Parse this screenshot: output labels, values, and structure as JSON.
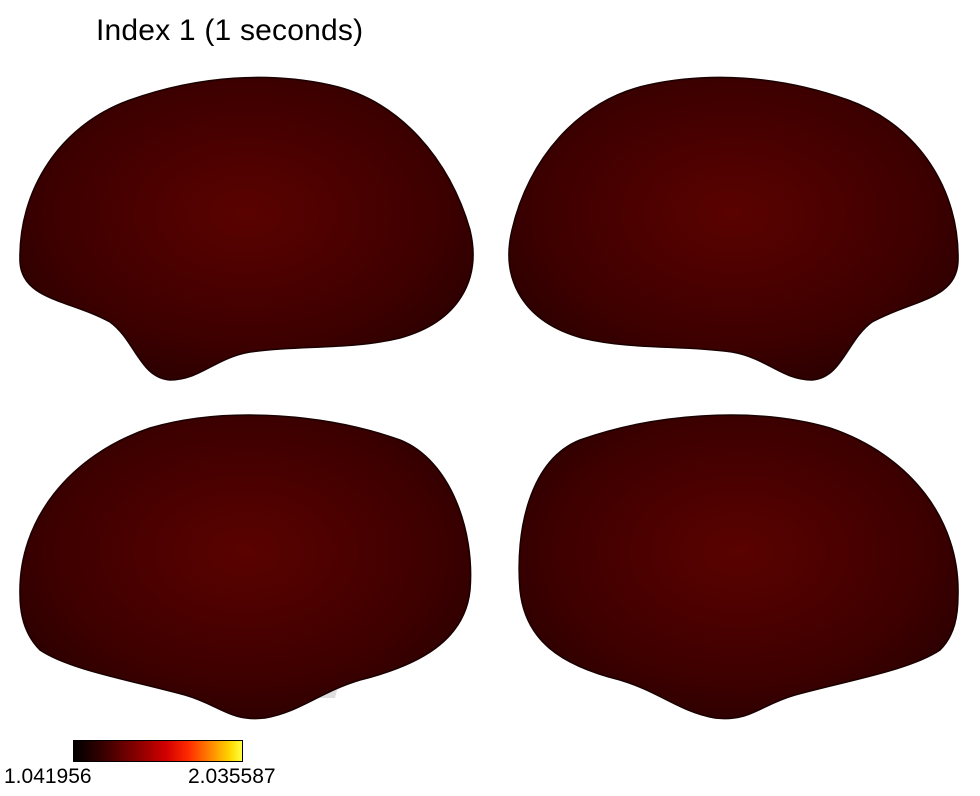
{
  "title": "Index 1 (1 seconds)",
  "colorbar": {
    "min_label": "1.041956",
    "max_label": "2.035587",
    "colormap": "black-red-yellow"
  },
  "views": [
    {
      "name": "left-lateral",
      "hemisphere": "left",
      "aspect": "lateral"
    },
    {
      "name": "right-lateral",
      "hemisphere": "right",
      "aspect": "lateral"
    },
    {
      "name": "left-medial",
      "hemisphere": "left",
      "aspect": "medial"
    },
    {
      "name": "right-medial",
      "hemisphere": "right",
      "aspect": "medial"
    }
  ],
  "colors": {
    "base": "#4a0000",
    "hot": "#ff2a00",
    "medial_wall": "#f2f2f2"
  }
}
